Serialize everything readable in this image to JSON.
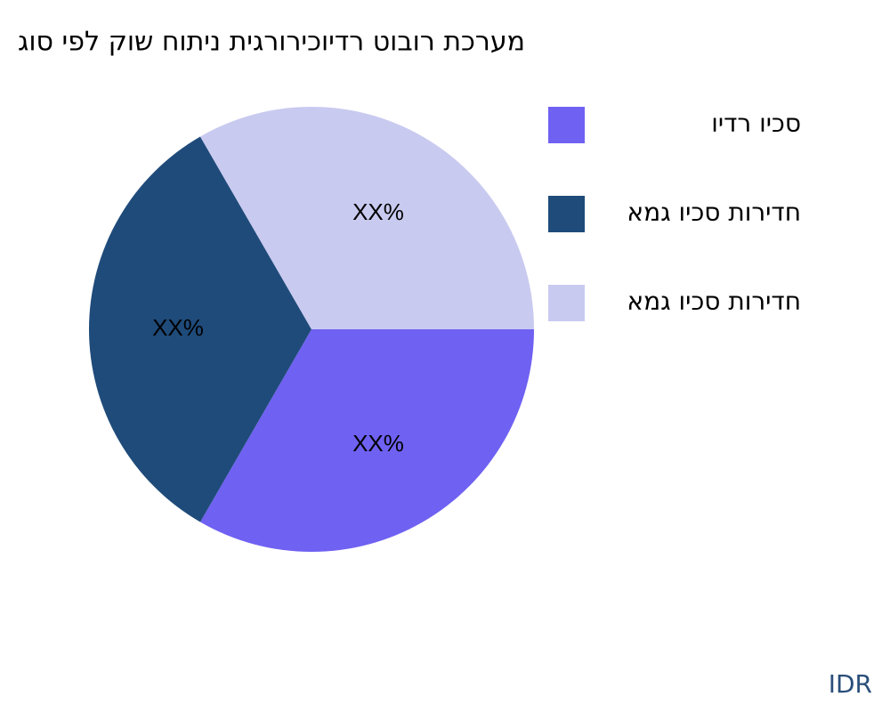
{
  "chart_data": {
    "type": "pie",
    "title": "גוס יפל קוש חותינ תיגרוריכוידר טובור תכרעמ",
    "categories": [
      "וידר ויכס",
      "אמג ויכס תורידח",
      "אמג ויכס תורידח"
    ],
    "values": [
      33.3,
      33.3,
      33.3
    ],
    "value_labels": [
      "XX%",
      "XX%",
      "XX%"
    ],
    "colors": [
      "#6f61f2",
      "#1f4b7a",
      "#c9caf0"
    ],
    "legend": "right",
    "watermark": "IDR"
  }
}
